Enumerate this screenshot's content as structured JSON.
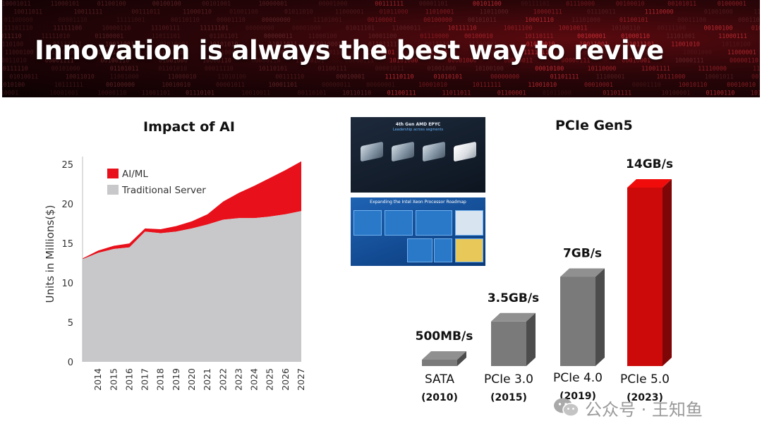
{
  "banner": {
    "title": "Innovation is always the best way to revive"
  },
  "colors": {
    "ai_ml": "#e8101a",
    "traditional": "#c8c8ca",
    "bar_gray": "#7a7a7a",
    "bar_red": "#cc0a0a"
  },
  "chart_data": [
    {
      "type": "area",
      "stacked": true,
      "title": "Impact of AI",
      "xlabel": "",
      "ylabel": "Units in Millions($)",
      "x": [
        "2013",
        "2014",
        "2015",
        "2016",
        "2017",
        "2018",
        "2019",
        "2020",
        "2021",
        "2022",
        "2023",
        "2024",
        "2025",
        "2026",
        "2027"
      ],
      "x_tick_labels": [
        "2014",
        "2015",
        "2016",
        "2017",
        "2018",
        "2019",
        "2020",
        "2021",
        "2022",
        "2023",
        "2024",
        "2025",
        "2026",
        "2027"
      ],
      "ylim": [
        0,
        26
      ],
      "y_ticks": [
        0,
        5,
        10,
        15,
        20,
        25
      ],
      "grid": false,
      "legend": "top-left",
      "series": [
        {
          "name": "Traditional Server",
          "color": "#c8c8ca",
          "values": [
            13.0,
            13.8,
            14.3,
            14.5,
            16.5,
            16.3,
            16.5,
            16.9,
            17.4,
            18.0,
            18.2,
            18.2,
            18.4,
            18.7,
            19.1
          ]
        },
        {
          "name": "AI/ML",
          "color": "#e8101a",
          "values": [
            0.1,
            0.3,
            0.4,
            0.5,
            0.4,
            0.5,
            0.7,
            0.9,
            1.3,
            2.3,
            3.2,
            4.1,
            4.9,
            5.6,
            6.3
          ]
        }
      ]
    },
    {
      "type": "bar",
      "title": "PCIe Gen5",
      "categories": [
        "SATA",
        "PCIe 3.0",
        "PCIe 4.0",
        "PCIe 5.0"
      ],
      "years": [
        "(2010)",
        "(2015)",
        "(2019)",
        "(2023)"
      ],
      "values_gb_s": [
        0.5,
        3.5,
        7,
        14
      ],
      "data_labels": [
        "500MB/s",
        "3.5GB/s",
        "7GB/s",
        "14GB/s"
      ],
      "colors": [
        "#7a7a7a",
        "#7a7a7a",
        "#7a7a7a",
        "#cc0a0a"
      ]
    }
  ],
  "thumbnails": {
    "epyc": {
      "title": "4th Gen AMD EPYC",
      "subtitle": "Leadership across segments"
    },
    "xeon": {
      "title": "Expanding the Intel Xeon Processor Roadmap"
    }
  },
  "watermark": {
    "text": "公众号 · 王知鱼"
  }
}
